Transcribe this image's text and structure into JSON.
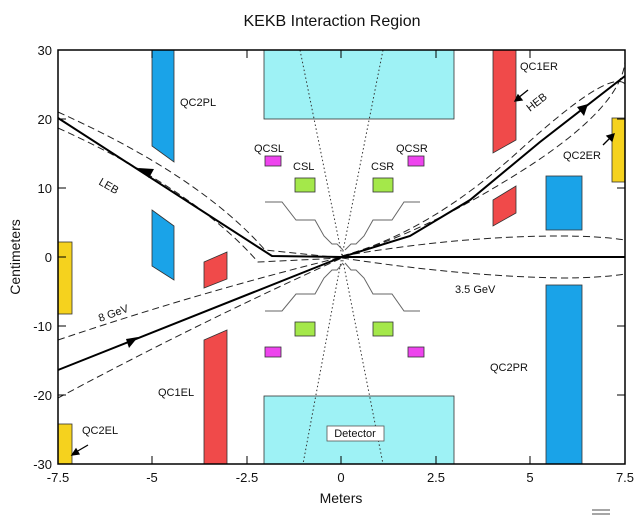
{
  "title": "KEKB Interaction Region",
  "x_axis": {
    "label": "Meters",
    "range": [
      -7.5,
      7.5
    ],
    "ticks": [
      "-7.5",
      "-5",
      "-2.5",
      "0",
      "2.5",
      "5",
      "7.5"
    ]
  },
  "y_axis": {
    "label": "Centimeters",
    "range": [
      -30,
      30
    ],
    "ticks": [
      "30",
      "20",
      "10",
      "0",
      "-10",
      "-20",
      "-30"
    ]
  },
  "colors": {
    "cyan": "#9ef2f5",
    "blue": "#1aa3e8",
    "red": "#f04a4a",
    "yellow": "#f5d21e",
    "magenta": "#ee44ee",
    "green": "#a4e84a"
  },
  "labels": {
    "qc2pl": "QC2PL",
    "qc1er": "QC1ER",
    "heb": "HEB",
    "qc2er": "QC2ER",
    "qcsl": "QCSL",
    "qcsr": "QCSR",
    "csl": "CSL",
    "csr": "CSR",
    "leb": "LEB",
    "gev8": "8 GeV",
    "gev35": "3.5 GeV",
    "qc1el": "QC1EL",
    "qc2pr": "QC2PR",
    "qc2el": "QC2EL",
    "detector": "Detector"
  }
}
